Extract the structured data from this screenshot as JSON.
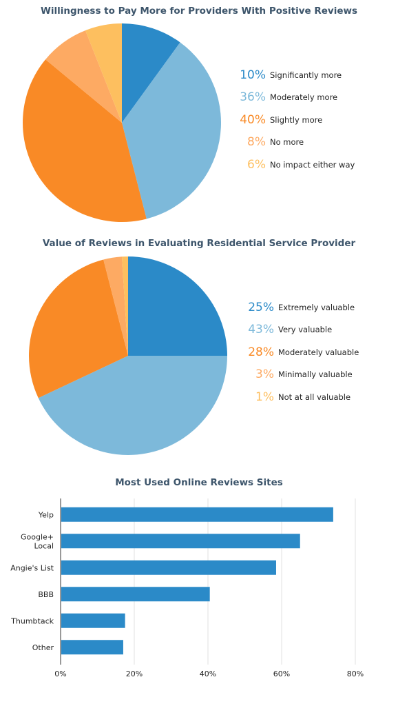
{
  "chart_data": [
    {
      "type": "pie",
      "title": "Willingness to Pay More for Providers With Positive Reviews",
      "slices": [
        {
          "label": "Significantly more",
          "value": 10,
          "display": "10%",
          "color": "#2b8ac8"
        },
        {
          "label": "Moderately more",
          "value": 36,
          "display": "36%",
          "color": "#7db9da"
        },
        {
          "label": "Slightly more",
          "value": 40,
          "display": "40%",
          "color": "#f98a26"
        },
        {
          "label": "No more",
          "value": 8,
          "display": "8%",
          "color": "#fdaa63"
        },
        {
          "label": "No impact either way",
          "value": 6,
          "display": "6%",
          "color": "#fdbf5f"
        }
      ]
    },
    {
      "type": "pie",
      "title": "Value of Reviews in Evaluating Residential Service Provider",
      "slices": [
        {
          "label": "Extremely valuable",
          "value": 25,
          "display": "25%",
          "color": "#2b8ac8"
        },
        {
          "label": "Very valuable",
          "value": 43,
          "display": "43%",
          "color": "#7db9da"
        },
        {
          "label": "Moderately valuable",
          "value": 28,
          "display": "28%",
          "color": "#f98a26"
        },
        {
          "label": "Minimally valuable",
          "value": 3,
          "display": "3%",
          "color": "#fdaa63"
        },
        {
          "label": "Not at all valuable",
          "value": 1,
          "display": "1%",
          "color": "#fdbf5f"
        }
      ]
    },
    {
      "type": "bar",
      "orientation": "horizontal",
      "title": "Most Used Online Reviews Sites",
      "categories": [
        "Yelp",
        "Google+\nLocal",
        "Angie's List",
        "BBB",
        "Thumbtack",
        "Other"
      ],
      "values": [
        74,
        65,
        58.5,
        40.5,
        17.5,
        17
      ],
      "xlim": [
        0,
        80
      ],
      "xticks": [
        0,
        20,
        40,
        60,
        80
      ],
      "xtick_labels": [
        "0%",
        "20%",
        "40%",
        "60%",
        "80%"
      ],
      "grid": true,
      "color": "#2b8ac8"
    }
  ]
}
